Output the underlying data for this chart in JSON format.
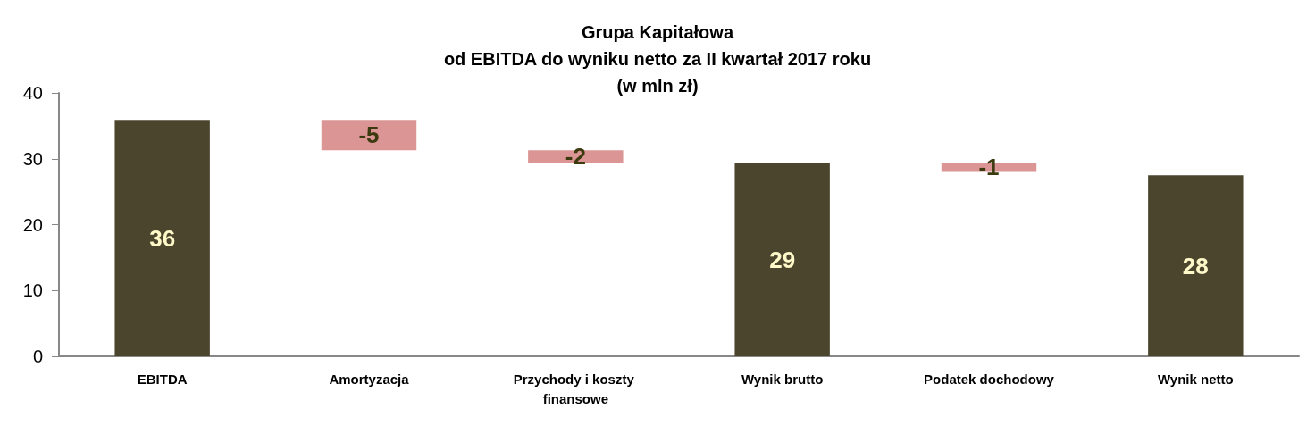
{
  "chart_data": {
    "type": "bar",
    "title": "Grupa Kapitałowa\nod EBITDA do wyniku netto za II kwartał 2017 roku\n(w mln zł)",
    "categories": [
      "EBITDA",
      "Amortyzacja",
      "Przychody i koszty finansowe",
      "Wynik brutto",
      "Podatek dochodowy",
      "Wynik netto"
    ],
    "values": [
      35.9,
      -4.6,
      -1.9,
      29.4,
      -1.4,
      27.5
    ],
    "base": [
      0,
      35.9,
      31.3,
      0,
      29.4,
      0
    ],
    "value_labels": [
      "36",
      "-5",
      "-2",
      "29",
      "-1",
      "28"
    ],
    "colors": [
      "#4b452e",
      "#db9595",
      "#db9595",
      "#4b452e",
      "#db9595",
      "#4b452e"
    ],
    "ylim": [
      0,
      40
    ],
    "yticks": [
      0,
      10,
      20,
      30,
      40
    ],
    "grid": false
  }
}
